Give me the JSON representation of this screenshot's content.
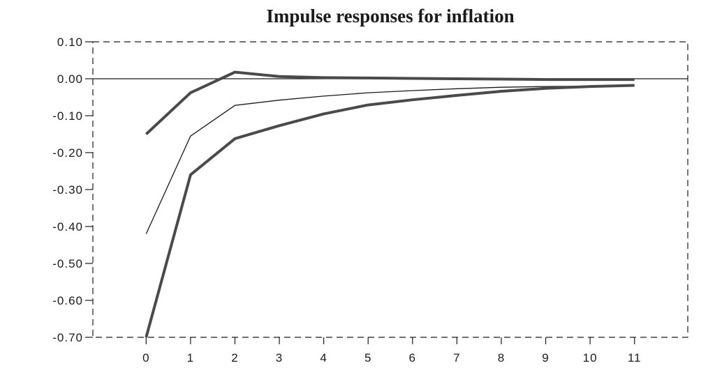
{
  "chart_data": {
    "type": "line",
    "title": "Impulse responses for inflation",
    "xlabel": "",
    "ylabel": "",
    "x": [
      0,
      1,
      2,
      3,
      4,
      5,
      6,
      7,
      8,
      9,
      10,
      11
    ],
    "x_tick_labels": [
      "0",
      "1",
      "2",
      "3",
      "4",
      "5",
      "6",
      "7",
      "8",
      "9",
      "10",
      "11"
    ],
    "y_tick_labels": [
      "0.10",
      "0.00",
      "-0.10",
      "-0.20",
      "-0.30",
      "-0.40",
      "-0.50",
      "-0.60",
      "-0.70"
    ],
    "y_ticks": [
      0.1,
      0.0,
      -0.1,
      -0.2,
      -0.3,
      -0.4,
      -0.5,
      -0.6,
      -0.7
    ],
    "xlim": [
      -1.2,
      12.2
    ],
    "ylim": [
      -0.7,
      0.1
    ],
    "zero_line": true,
    "grid": false,
    "frame": "dashed",
    "series": [
      {
        "style": "thick",
        "color": "#4a4a4a",
        "values": [
          -0.15,
          -0.038,
          0.018,
          0.006,
          0.003,
          0.002,
          0.001,
          0.0,
          -0.001,
          -0.002,
          -0.002,
          -0.002
        ]
      },
      {
        "style": "thin",
        "color": "#1a1a1a",
        "values": [
          -0.42,
          -0.155,
          -0.072,
          -0.058,
          -0.047,
          -0.038,
          -0.032,
          -0.027,
          -0.023,
          -0.021,
          -0.02,
          -0.019
        ]
      },
      {
        "style": "thick",
        "color": "#4a4a4a",
        "values": [
          -0.7,
          -0.26,
          -0.162,
          -0.127,
          -0.095,
          -0.071,
          -0.057,
          -0.045,
          -0.034,
          -0.026,
          -0.021,
          -0.018
        ]
      }
    ]
  }
}
